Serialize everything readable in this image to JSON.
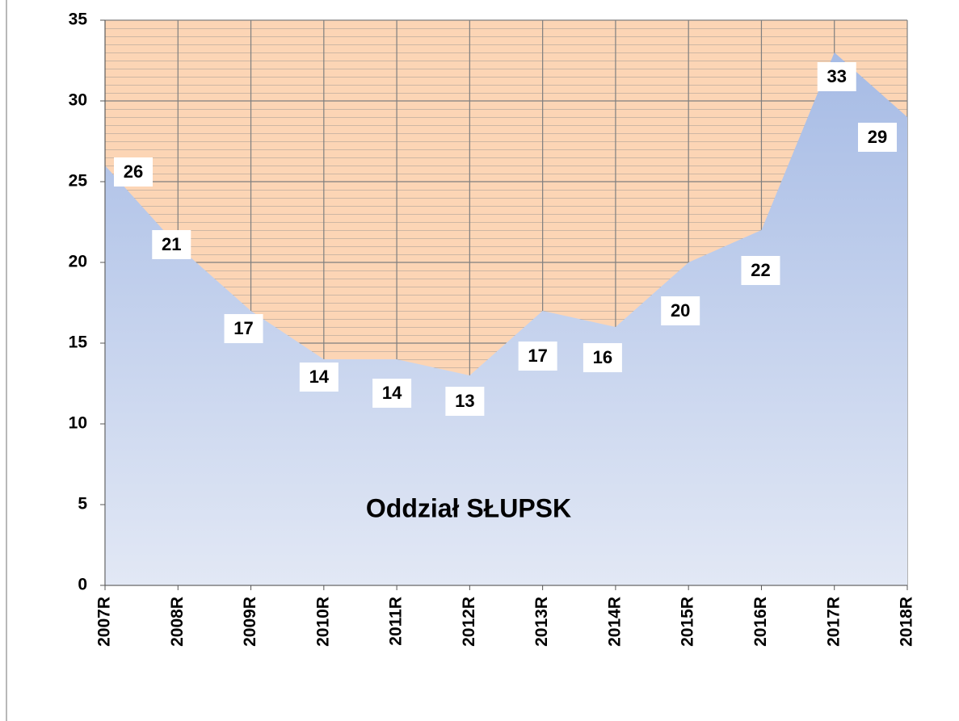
{
  "chart_data": {
    "type": "area",
    "annotation": "Oddział SŁUPSK",
    "categories": [
      "2007R",
      "2008R",
      "2009R",
      "2010R",
      "2011R",
      "2012R",
      "2013R",
      "2014R",
      "2015R",
      "2016R",
      "2017R",
      "2018R"
    ],
    "values": [
      26,
      21,
      17,
      14,
      14,
      13,
      17,
      16,
      20,
      22,
      33,
      29
    ],
    "ylim": [
      0,
      35
    ],
    "yticks": [
      0,
      5,
      10,
      15,
      20,
      25,
      30,
      35
    ],
    "grid": true,
    "color": "#a9bee6",
    "background": "#fcd5b5"
  }
}
